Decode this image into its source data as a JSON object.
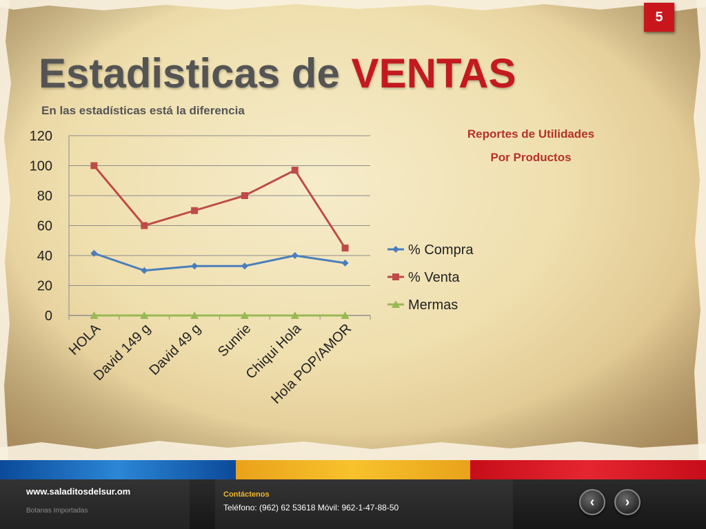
{
  "page_number": "5",
  "title": {
    "main": "Estadisticas de ",
    "accent": "VENTAS"
  },
  "subtitle": "En las estadísticas está la diferencia",
  "side_heading": {
    "line1": "Reportes  de Utilidades",
    "line2": "Por Productos"
  },
  "chart_data": {
    "type": "line",
    "categories": [
      "HOLA",
      "David 149 g",
      "David 49 g",
      "Sunrie",
      "Chiqui Hola",
      "Hola POP/AMOR"
    ],
    "series": [
      {
        "name": "% Compra",
        "values": [
          41.5,
          30,
          33,
          33,
          40,
          35
        ],
        "color": "#4a7ebb",
        "marker": "diamond"
      },
      {
        "name": "% Venta",
        "values": [
          100,
          60,
          70,
          80,
          97,
          45
        ],
        "color": "#be4b48",
        "marker": "square"
      },
      {
        "name": "Mermas",
        "values": [
          0,
          0,
          0,
          0,
          0,
          0
        ],
        "color": "#98b954",
        "marker": "triangle"
      }
    ],
    "ylim": [
      0,
      120
    ],
    "yticks": [
      0,
      20,
      40,
      60,
      80,
      100,
      120
    ],
    "grid": true,
    "legend": "right"
  },
  "footer": {
    "website": "www.saladitosdelsur.om",
    "tagline": "Botanas Importadas",
    "contact_label": "Contáctenos",
    "contact_text": "Teléfono: (962) 62 53618 Móvil: 962-1-47-88-50",
    "prev_label": "‹",
    "next_label": "›"
  },
  "colors": {
    "accent": "#c21a1f",
    "heading": "#b5312a",
    "badge": "#c9161d"
  }
}
